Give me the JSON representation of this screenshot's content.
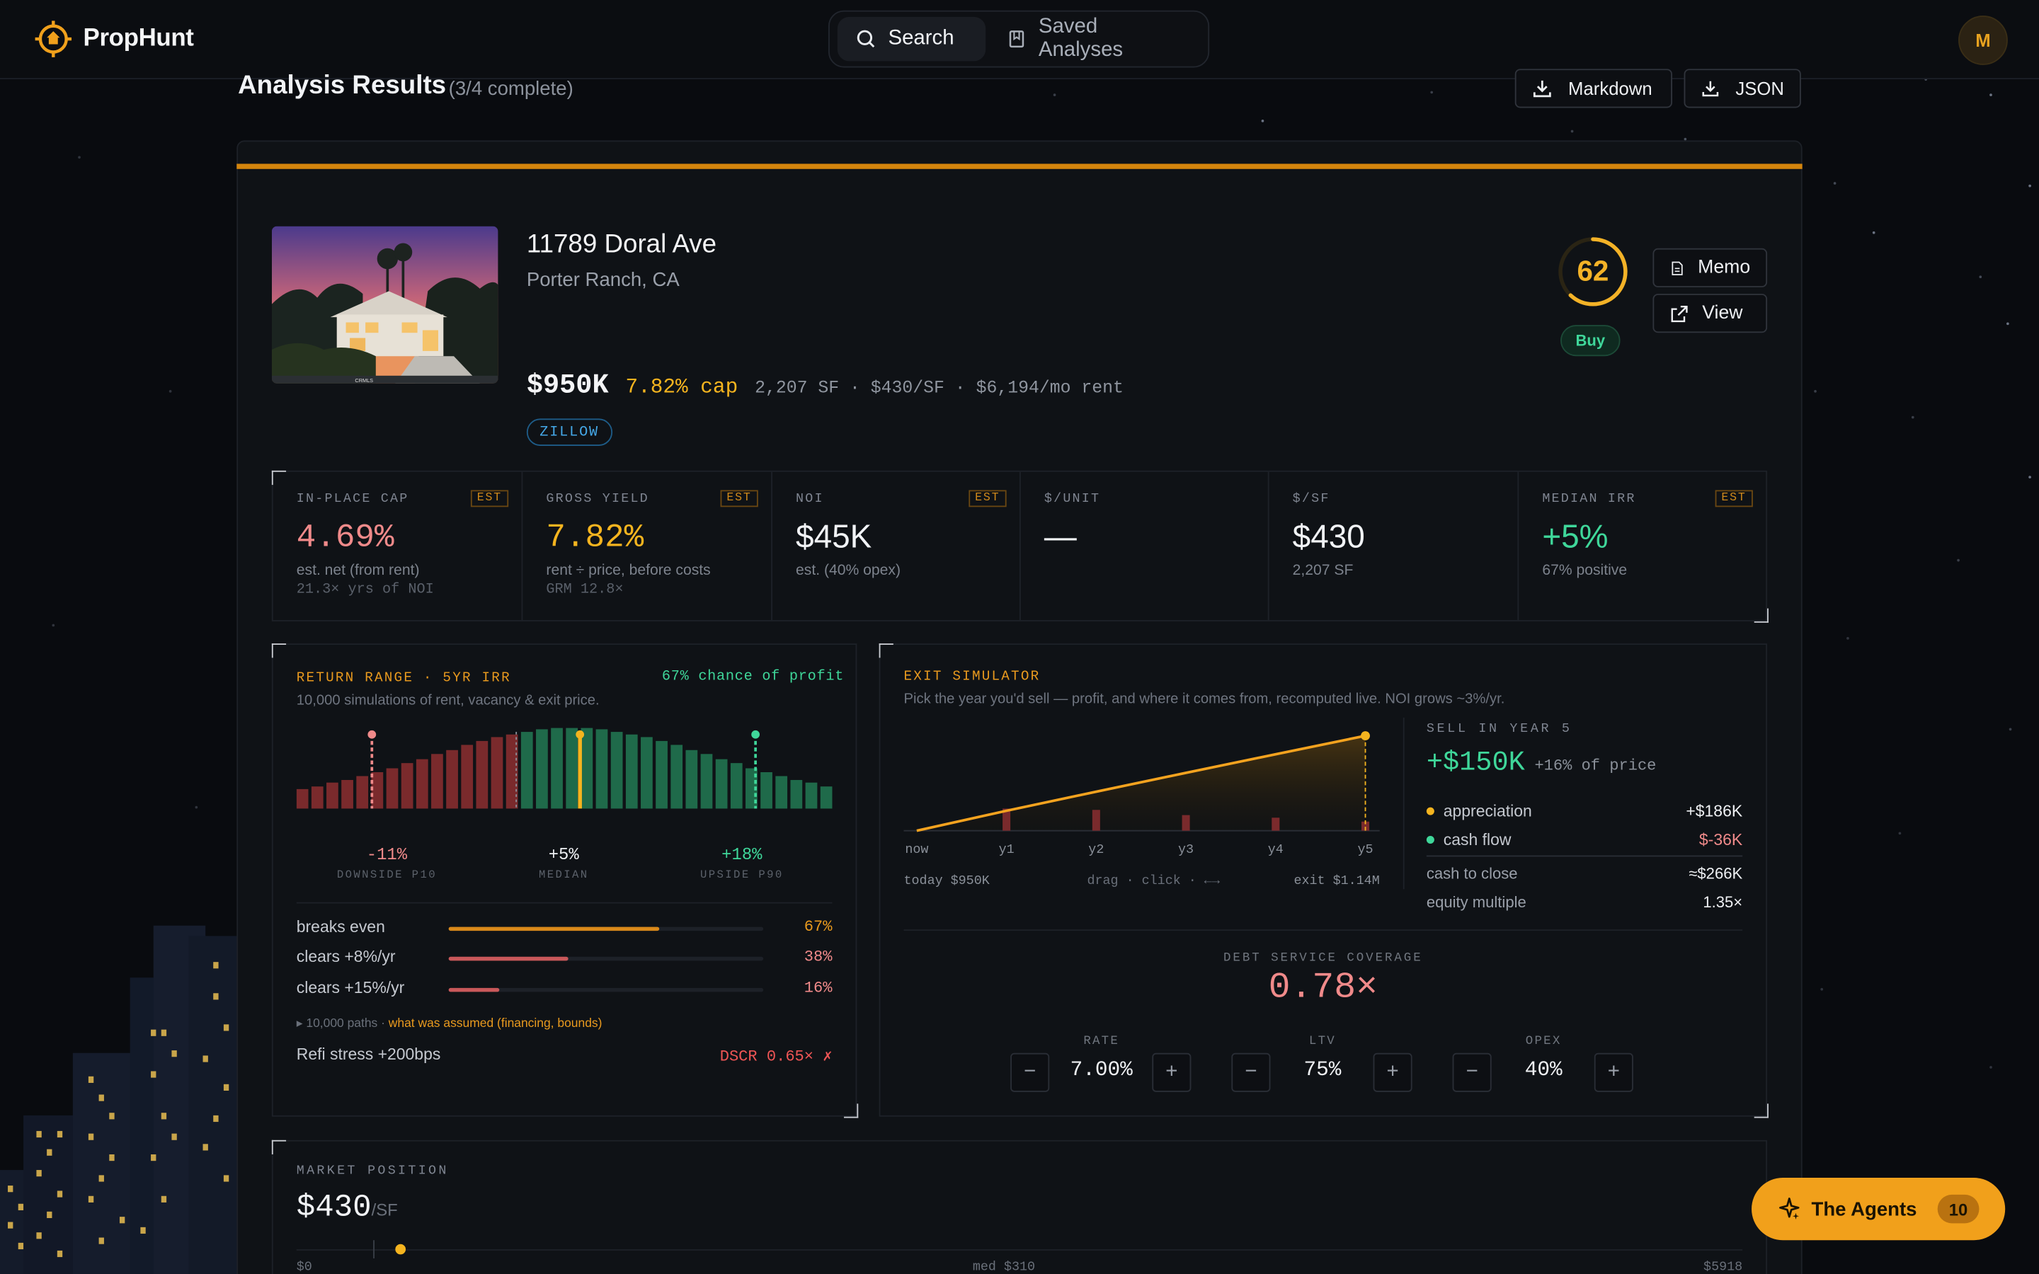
{
  "header": {
    "app_name": "PropHunt",
    "tabs": [
      {
        "label": "Search",
        "icon": "search-icon",
        "active": true
      },
      {
        "label": "Saved Analyses",
        "icon": "bookmark-icon",
        "active": false
      }
    ],
    "avatar_initial": "M"
  },
  "page": {
    "title": "Analysis Results",
    "subtitle": "(3/4 complete)",
    "export_markdown": "Markdown",
    "export_json": "JSON"
  },
  "property": {
    "address": "11789 Doral Ave",
    "city": "Porter Ranch, CA",
    "price": "$950K",
    "cap": "7.82% cap",
    "specs": "2,207 SF · $430/SF · $6,194/mo rent",
    "source": "ZILLOW",
    "photo_caption": "CRMLS",
    "score": "62",
    "score_fraction": 0.62,
    "verdict": "Buy",
    "memo_label": "Memo",
    "view_label": "View"
  },
  "metrics": [
    {
      "label": "IN-PLACE CAP",
      "est": "EST",
      "value": "4.69%",
      "sub1": "est. net (from rent)",
      "sub2": "21.3× yrs of NOI"
    },
    {
      "label": "GROSS YIELD",
      "est": "EST",
      "value": "7.82%",
      "sub1": "rent ÷ price, before costs",
      "sub2": "GRM 12.8×"
    },
    {
      "label": "NOI",
      "est": "EST",
      "value": "$45K",
      "sub1": "est. (40% opex)",
      "sub2": ""
    },
    {
      "label": "$/UNIT",
      "est": "",
      "value": "—",
      "sub1": "",
      "sub2": ""
    },
    {
      "label": "$/SF",
      "est": "",
      "value": "$430",
      "sub1": "2,207 SF",
      "sub2": ""
    },
    {
      "label": "MEDIAN IRR",
      "est": "EST",
      "value": "+5%",
      "sub1": "67% positive",
      "sub2": ""
    }
  ],
  "return_range": {
    "title": "RETURN RANGE · 5YR IRR",
    "chance": "67% chance of profit",
    "subtitle": "10,000 simulations of rent, vacancy & exit price.",
    "p10_value": "-11%",
    "p10_label": "DOWNSIDE P10",
    "median_value": "+5%",
    "median_label": "MEDIAN",
    "p90_value": "+18%",
    "p90_label": "UPSIDE P90",
    "rows": [
      {
        "label": "breaks even",
        "pct": "67%",
        "fraction": 0.67
      },
      {
        "label": "clears +8%/yr",
        "pct": "38%",
        "fraction": 0.38
      },
      {
        "label": "clears +15%/yr",
        "pct": "16%",
        "fraction": 0.16
      }
    ],
    "paths_note": "▸ 10,000 paths ·",
    "assumed_link": "what was assumed (financing, bounds)",
    "refi_label": "Refi stress +200bps",
    "refi_value": "DSCR 0.65× ✗"
  },
  "exit_sim": {
    "title": "EXIT SIMULATOR",
    "subtitle": "Pick the year you'd sell — profit, and where it comes from, recomputed live. NOI grows ~3%/yr.",
    "x_labels": [
      "now",
      "y1",
      "y2",
      "y3",
      "y4",
      "y5"
    ],
    "today": "today $950K",
    "drag_hint": "drag · click · ←→",
    "exit": "exit $1.14M",
    "sell_label": "SELL IN YEAR 5",
    "profit": "+$150K",
    "profit_pct": "+16% of price",
    "appreciation_label": "appreciation",
    "appreciation_value": "+$186K",
    "cashflow_label": "cash flow",
    "cashflow_value": "$-36K",
    "cash_close_label": "cash to close",
    "cash_close_value": "≈$266K",
    "equity_label": "equity multiple",
    "equity_value": "1.35×",
    "dscr_label": "DEBT SERVICE COVERAGE",
    "dscr_value": "0.78×",
    "rate_label": "RATE",
    "rate_value": "7.00%",
    "ltv_label": "LTV",
    "ltv_value": "75%",
    "opex_label": "OPEX",
    "opex_value": "40%",
    "minus": "−",
    "plus": "+"
  },
  "market": {
    "title": "MARKET POSITION",
    "value": "$430",
    "unit": "/SF",
    "min": "$0",
    "median": "med $310",
    "max": "$5918"
  },
  "agents": {
    "label": "The Agents",
    "count": "10"
  },
  "colors": {
    "accent": "#f5b41f",
    "negative": "#f08a8a",
    "positive": "#3fd79a",
    "background": "#090b0f"
  }
}
